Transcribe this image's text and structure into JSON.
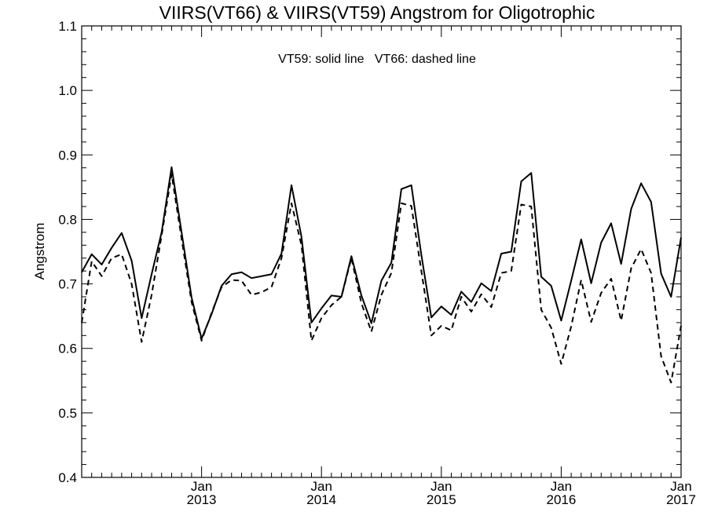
{
  "chart_data": {
    "type": "line",
    "title": "VIIRS(VT66) & VIIRS(VT59)  Angstrom for Oligotrophic",
    "annotation": "VT59: solid line   VT66: dashed line",
    "ylabel": "Angstrom",
    "xlabel": "",
    "xlim": [
      "2012-01",
      "2017-01"
    ],
    "ylim": [
      0.4,
      1.1
    ],
    "y_ticks": [
      0.4,
      0.5,
      0.6,
      0.7,
      0.8,
      0.9,
      1.0,
      1.1
    ],
    "y_tick_labels": [
      "0.4",
      "0.5",
      "0.6",
      "0.7",
      "0.8",
      "0.9",
      "1.0",
      "1.1"
    ],
    "x_ticks": [
      {
        "value": "2013-01",
        "month": "Jan",
        "year": "2013"
      },
      {
        "value": "2014-01",
        "month": "Jan",
        "year": "2014"
      },
      {
        "value": "2015-01",
        "month": "Jan",
        "year": "2015"
      },
      {
        "value": "2016-01",
        "month": "Jan",
        "year": "2016"
      },
      {
        "value": "2017-01",
        "month": "Jan",
        "year": "2017"
      }
    ],
    "grid": false,
    "legend": "none",
    "x": [
      "2012-01",
      "2012-02",
      "2012-03",
      "2012-04",
      "2012-05",
      "2012-06",
      "2012-07",
      "2012-08",
      "2012-09",
      "2012-10",
      "2012-11",
      "2012-12",
      "2013-01",
      "2013-02",
      "2013-03",
      "2013-04",
      "2013-05",
      "2013-06",
      "2013-07",
      "2013-08",
      "2013-09",
      "2013-10",
      "2013-11",
      "2013-12",
      "2014-01",
      "2014-02",
      "2014-03",
      "2014-04",
      "2014-05",
      "2014-06",
      "2014-07",
      "2014-08",
      "2014-09",
      "2014-10",
      "2014-11",
      "2014-12",
      "2015-01",
      "2015-02",
      "2015-03",
      "2015-04",
      "2015-05",
      "2015-06",
      "2015-07",
      "2015-08",
      "2015-09",
      "2015-10",
      "2015-11",
      "2015-12",
      "2016-01",
      "2016-02",
      "2016-03",
      "2016-04",
      "2016-05",
      "2016-06",
      "2016-07",
      "2016-08",
      "2016-09",
      "2016-10",
      "2016-11",
      "2016-12",
      "2017-01"
    ],
    "series": [
      {
        "style": "solid",
        "color": "#000000",
        "values": [
          0.718,
          0.746,
          0.73,
          0.756,
          0.779,
          0.736,
          0.647,
          0.715,
          0.78,
          0.881,
          0.78,
          0.679,
          0.615,
          0.653,
          0.697,
          0.715,
          0.718,
          0.709,
          0.712,
          0.715,
          0.747,
          0.853,
          0.773,
          0.64,
          0.662,
          0.682,
          0.68,
          0.743,
          0.682,
          0.639,
          0.705,
          0.733,
          0.847,
          0.853,
          0.745,
          0.648,
          0.665,
          0.652,
          0.688,
          0.672,
          0.701,
          0.689,
          0.747,
          0.75,
          0.859,
          0.872,
          0.711,
          0.697,
          0.643,
          0.705,
          0.769,
          0.701,
          0.764,
          0.794,
          0.731,
          0.816,
          0.856,
          0.827,
          0.716,
          0.68,
          0.772
        ]
      },
      {
        "style": "dashed",
        "color": "#000000",
        "values": [
          0.64,
          0.735,
          0.712,
          0.74,
          0.746,
          0.7,
          0.61,
          0.683,
          0.775,
          0.87,
          0.77,
          0.672,
          0.612,
          0.655,
          0.695,
          0.706,
          0.705,
          0.683,
          0.687,
          0.695,
          0.74,
          0.825,
          0.76,
          0.612,
          0.647,
          0.667,
          0.68,
          0.74,
          0.67,
          0.626,
          0.683,
          0.717,
          0.825,
          0.821,
          0.72,
          0.62,
          0.635,
          0.628,
          0.68,
          0.657,
          0.684,
          0.664,
          0.717,
          0.72,
          0.823,
          0.82,
          0.66,
          0.632,
          0.576,
          0.634,
          0.706,
          0.641,
          0.686,
          0.708,
          0.643,
          0.724,
          0.754,
          0.717,
          0.588,
          0.547,
          0.635
        ]
      }
    ]
  }
}
